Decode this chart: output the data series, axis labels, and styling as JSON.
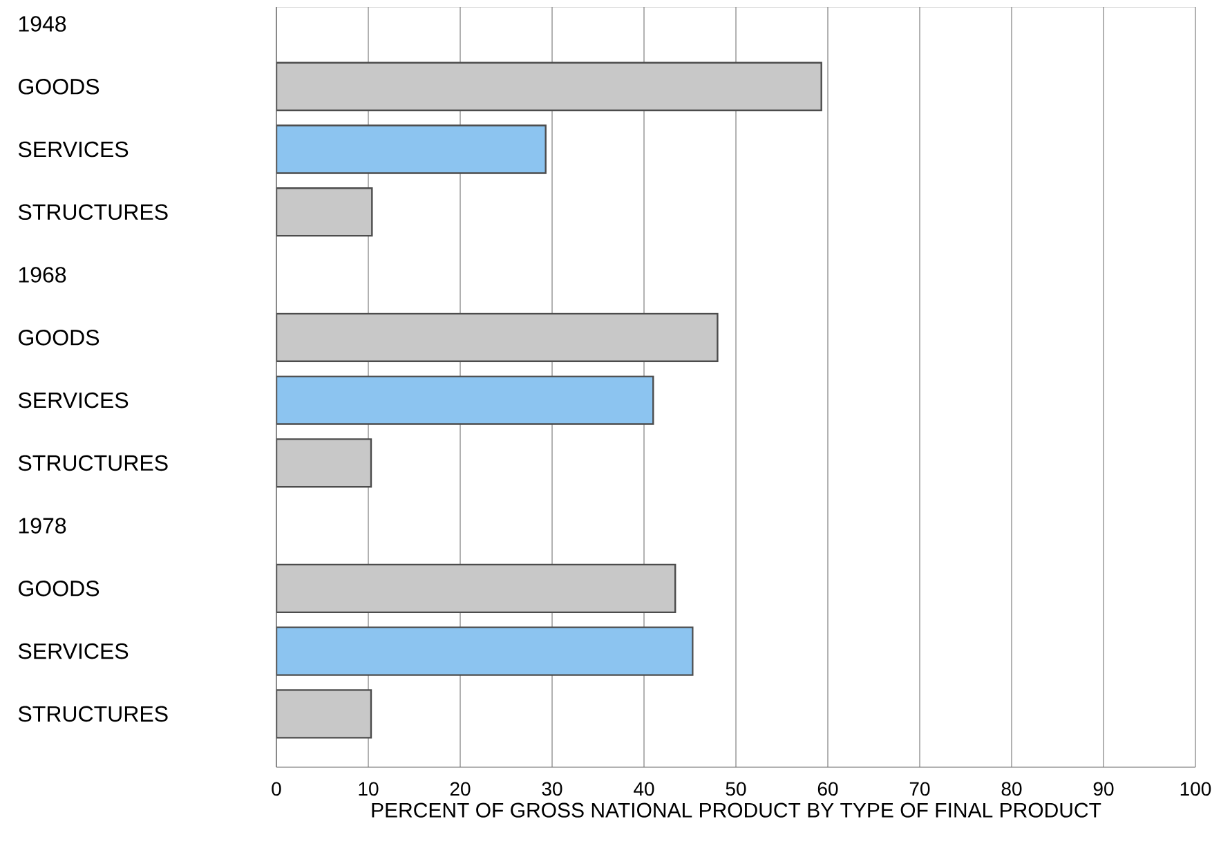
{
  "chart_data": {
    "type": "bar",
    "orientation": "horizontal",
    "xlabel": "PERCENT OF GROSS NATIONAL PRODUCT BY TYPE OF FINAL PRODUCT",
    "categories": [
      "1948",
      "GOODS",
      "SERVICES",
      "STRUCTURES",
      "1968",
      "GOODS",
      "SERVICES",
      "STRUCTURES",
      "1978",
      "GOODS",
      "SERVICES",
      "STRUCTURES"
    ],
    "values": [
      null,
      59.3,
      29.3,
      10.4,
      null,
      48,
      41,
      10.3,
      null,
      43.4,
      45.3,
      10.3
    ],
    "colors": [
      null,
      "#c8c8c8",
      "#8cc4f0",
      "#c8c8c8",
      null,
      "#c8c8c8",
      "#8cc4f0",
      "#c8c8c8",
      null,
      "#c8c8c8",
      "#8cc4f0",
      "#c8c8c8"
    ],
    "xlim": [
      0,
      100
    ],
    "xticks": [
      0,
      10,
      20,
      30,
      40,
      50,
      60,
      70,
      80,
      90,
      100
    ],
    "grid": "x"
  }
}
